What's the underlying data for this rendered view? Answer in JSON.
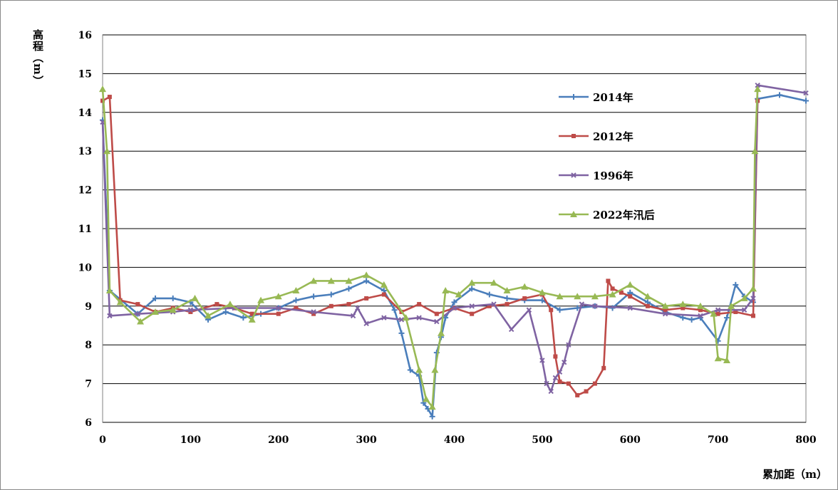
{
  "chart_data": {
    "type": "line",
    "title": "",
    "xlabel": "累加距（m）",
    "ylabel": "高程（m）",
    "xlim": [
      0,
      800
    ],
    "ylim": [
      6,
      16
    ],
    "xticks": [
      "0",
      "100",
      "200",
      "300",
      "400",
      "500",
      "600",
      "700",
      "800"
    ],
    "yticks": [
      "6",
      "7",
      "8",
      "9",
      "10",
      "11",
      "12",
      "13",
      "14",
      "15",
      "16"
    ],
    "grid": "horizontal",
    "legend": "right-center",
    "series": [
      {
        "name": "2014年",
        "color": "#4a7ebb",
        "marker": "plus",
        "x": [
          0,
          8,
          40,
          60,
          80,
          100,
          120,
          140,
          160,
          180,
          200,
          220,
          240,
          260,
          280,
          300,
          320,
          332,
          340,
          350,
          360,
          365,
          370,
          375,
          380,
          385,
          390,
          400,
          420,
          440,
          460,
          480,
          500,
          520,
          540,
          560,
          580,
          600,
          620,
          640,
          660,
          670,
          680,
          700,
          710,
          720,
          730,
          740,
          745,
          770,
          800
        ],
        "y": [
          13.8,
          9.4,
          8.8,
          9.2,
          9.2,
          9.1,
          8.65,
          8.85,
          8.7,
          8.8,
          8.95,
          9.15,
          9.25,
          9.3,
          9.45,
          9.65,
          9.4,
          8.9,
          8.3,
          7.35,
          7.2,
          6.5,
          6.35,
          6.15,
          7.8,
          8.2,
          8.7,
          9.1,
          9.45,
          9.3,
          9.2,
          9.15,
          9.15,
          8.9,
          8.95,
          9.0,
          8.95,
          9.35,
          9.1,
          8.85,
          8.7,
          8.65,
          8.7,
          8.1,
          8.7,
          9.55,
          9.25,
          9.1,
          14.35,
          14.45,
          14.3
        ]
      },
      {
        "name": "2012年",
        "color": "#be4b48",
        "marker": "square",
        "x": [
          0,
          8,
          20,
          40,
          60,
          80,
          100,
          130,
          150,
          170,
          200,
          220,
          240,
          260,
          280,
          300,
          320,
          340,
          360,
          380,
          400,
          420,
          440,
          460,
          480,
          500,
          510,
          515,
          520,
          530,
          540,
          550,
          560,
          570,
          575,
          580,
          590,
          600,
          620,
          640,
          660,
          680,
          700,
          720,
          740,
          745
        ],
        "y": [
          14.3,
          14.4,
          9.15,
          9.05,
          8.85,
          8.95,
          8.85,
          9.05,
          8.95,
          8.8,
          8.8,
          8.95,
          8.8,
          9.0,
          9.05,
          9.2,
          9.3,
          8.85,
          9.05,
          8.8,
          8.95,
          8.8,
          9.0,
          9.05,
          9.2,
          9.3,
          8.9,
          7.7,
          7.05,
          7.0,
          6.7,
          6.8,
          7.0,
          7.4,
          9.65,
          9.45,
          9.35,
          9.25,
          9.0,
          8.9,
          8.95,
          8.9,
          8.8,
          8.85,
          8.75,
          14.3
        ]
      },
      {
        "name": "1996年",
        "color": "#7f63a2",
        "marker": "cross",
        "x": [
          0,
          8,
          40,
          80,
          100,
          150,
          200,
          240,
          285,
          290,
          300,
          320,
          340,
          360,
          380,
          400,
          420,
          445,
          465,
          485,
          500,
          505,
          510,
          515,
          520,
          525,
          530,
          545,
          560,
          600,
          640,
          680,
          700,
          730,
          740,
          745,
          800
        ],
        "y": [
          13.75,
          8.75,
          8.8,
          8.85,
          8.9,
          8.95,
          8.95,
          8.85,
          8.75,
          8.95,
          8.55,
          8.7,
          8.65,
          8.7,
          8.6,
          8.95,
          9.0,
          9.05,
          8.4,
          8.9,
          7.6,
          7.0,
          6.8,
          7.15,
          7.3,
          7.55,
          8.0,
          9.05,
          9.0,
          8.95,
          8.8,
          8.75,
          8.9,
          8.9,
          9.2,
          14.7,
          14.5
        ]
      },
      {
        "name": "2022年汛后",
        "color": "#98b954",
        "marker": "triangle",
        "x": [
          0,
          5,
          8,
          20,
          43,
          60,
          80,
          105,
          120,
          145,
          170,
          180,
          200,
          220,
          240,
          260,
          280,
          300,
          320,
          345,
          360,
          368,
          375,
          378,
          385,
          390,
          405,
          420,
          445,
          460,
          480,
          500,
          520,
          540,
          560,
          580,
          600,
          620,
          640,
          660,
          680,
          695,
          700,
          710,
          715,
          730,
          740,
          742,
          745
        ],
        "y": [
          14.6,
          13.0,
          9.4,
          9.1,
          8.6,
          8.85,
          8.9,
          9.2,
          8.75,
          9.05,
          8.65,
          9.15,
          9.25,
          9.4,
          9.65,
          9.65,
          9.65,
          9.8,
          9.55,
          8.7,
          7.35,
          6.6,
          6.4,
          7.35,
          8.3,
          9.4,
          9.3,
          9.6,
          9.6,
          9.4,
          9.5,
          9.35,
          9.25,
          9.25,
          9.25,
          9.3,
          9.55,
          9.25,
          9.0,
          9.05,
          9.0,
          8.8,
          7.65,
          7.6,
          9.0,
          9.2,
          9.45,
          13.0,
          14.6
        ]
      }
    ]
  }
}
